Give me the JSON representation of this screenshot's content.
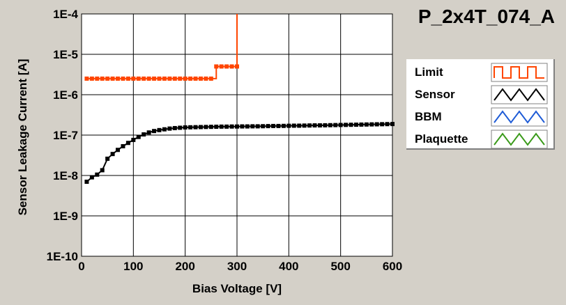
{
  "chart_data": {
    "type": "line",
    "title": "P_2x4T_074_A",
    "xlabel": "Bias Voltage [V]",
    "ylabel": "Sensor Leakage Current [A]",
    "xlim": [
      0,
      600
    ],
    "ylim": [
      1e-10,
      0.0001
    ],
    "yscale": "log",
    "grid": true,
    "legend_position": "right",
    "x_ticks": [
      {
        "value": 0,
        "label": "0"
      },
      {
        "value": 100,
        "label": "100"
      },
      {
        "value": 200,
        "label": "200"
      },
      {
        "value": 300,
        "label": "300"
      },
      {
        "value": 400,
        "label": "400"
      },
      {
        "value": 500,
        "label": "500"
      },
      {
        "value": 600,
        "label": "600"
      }
    ],
    "y_ticks": [
      {
        "value": 0.0001,
        "label": "1E-4"
      },
      {
        "value": 1e-05,
        "label": "1E-5"
      },
      {
        "value": 1e-06,
        "label": "1E-6"
      },
      {
        "value": 1e-07,
        "label": "1E-7"
      },
      {
        "value": 1e-08,
        "label": "1E-8"
      },
      {
        "value": 1e-09,
        "label": "1E-9"
      },
      {
        "value": 1e-10,
        "label": "1E-10"
      }
    ],
    "series": [
      {
        "name": "Limit",
        "color": "#ff4500",
        "step": true,
        "x": [
          10,
          20,
          30,
          40,
          50,
          60,
          70,
          80,
          90,
          100,
          110,
          120,
          130,
          140,
          150,
          160,
          170,
          180,
          190,
          200,
          210,
          220,
          230,
          240,
          250,
          260,
          270,
          280,
          290,
          300,
          300
        ],
        "y": [
          2.5e-06,
          2.5e-06,
          2.5e-06,
          2.5e-06,
          2.5e-06,
          2.5e-06,
          2.5e-06,
          2.5e-06,
          2.5e-06,
          2.5e-06,
          2.5e-06,
          2.5e-06,
          2.5e-06,
          2.5e-06,
          2.5e-06,
          2.5e-06,
          2.5e-06,
          2.5e-06,
          2.5e-06,
          2.5e-06,
          2.5e-06,
          2.5e-06,
          2.5e-06,
          2.5e-06,
          2.5e-06,
          5e-06,
          5e-06,
          5e-06,
          5e-06,
          5e-06,
          0.0001
        ]
      },
      {
        "name": "Sensor",
        "color": "#000000",
        "step": false,
        "x": [
          10,
          20,
          30,
          40,
          50,
          60,
          70,
          80,
          90,
          100,
          110,
          120,
          130,
          140,
          150,
          160,
          170,
          180,
          190,
          200,
          210,
          220,
          230,
          240,
          250,
          260,
          270,
          280,
          290,
          300,
          310,
          320,
          330,
          340,
          350,
          360,
          370,
          380,
          390,
          400,
          410,
          420,
          430,
          440,
          450,
          460,
          470,
          480,
          490,
          500,
          510,
          520,
          530,
          540,
          550,
          560,
          570,
          580,
          590,
          600
        ],
        "y": [
          7e-09,
          9e-09,
          1.05e-08,
          1.35e-08,
          2.6e-08,
          3.4e-08,
          4.3e-08,
          5.3e-08,
          6.4e-08,
          7.6e-08,
          9e-08,
          1.04e-07,
          1.16e-07,
          1.26e-07,
          1.33e-07,
          1.39e-07,
          1.45e-07,
          1.49e-07,
          1.52e-07,
          1.55e-07,
          1.56e-07,
          1.57e-07,
          1.58e-07,
          1.59e-07,
          1.6e-07,
          1.61e-07,
          1.62e-07,
          1.62e-07,
          1.63e-07,
          1.63e-07,
          1.64e-07,
          1.64e-07,
          1.65e-07,
          1.65e-07,
          1.66e-07,
          1.67e-07,
          1.68e-07,
          1.68e-07,
          1.69e-07,
          1.7e-07,
          1.71e-07,
          1.71e-07,
          1.72e-07,
          1.73e-07,
          1.74e-07,
          1.74e-07,
          1.75e-07,
          1.76e-07,
          1.77e-07,
          1.78e-07,
          1.79e-07,
          1.8e-07,
          1.81e-07,
          1.82e-07,
          1.83e-07,
          1.84e-07,
          1.85e-07,
          1.86e-07,
          1.87e-07,
          1.88e-07
        ]
      },
      {
        "name": "BBM",
        "color": "#1e5bd6",
        "step": false,
        "x": [],
        "y": []
      },
      {
        "name": "Plaquette",
        "color": "#3a9a1a",
        "step": false,
        "x": [],
        "y": []
      }
    ]
  }
}
